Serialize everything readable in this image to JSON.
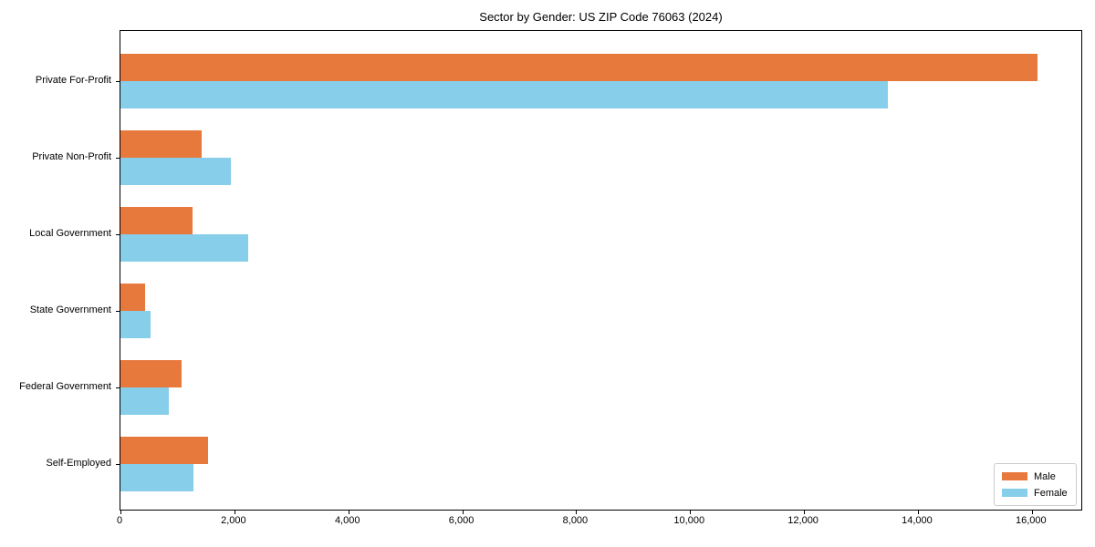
{
  "title": "Sector by Gender: US ZIP Code 76063 (2024)",
  "chart_data": {
    "type": "bar",
    "orientation": "horizontal",
    "title": "Sector by Gender: US ZIP Code 76063 (2024)",
    "xlabel": "",
    "ylabel": "",
    "categories": [
      "Private For-Profit",
      "Private Non-Profit",
      "Local Government",
      "State Government",
      "Federal Government",
      "Self-Employed"
    ],
    "series": [
      {
        "name": "Male",
        "color": "#e8793d",
        "values": [
          16100,
          1430,
          1270,
          440,
          1070,
          1540
        ]
      },
      {
        "name": "Female",
        "color": "#87ceeb",
        "values": [
          13470,
          1940,
          2240,
          530,
          850,
          1280
        ]
      }
    ],
    "xlim": [
      0,
      16900
    ],
    "x_ticks": [
      0,
      2000,
      4000,
      6000,
      8000,
      10000,
      12000,
      14000,
      16000
    ],
    "grid": false,
    "legend_position": "lower right",
    "frame_color": "#000000",
    "background_color": "#ffffff"
  }
}
